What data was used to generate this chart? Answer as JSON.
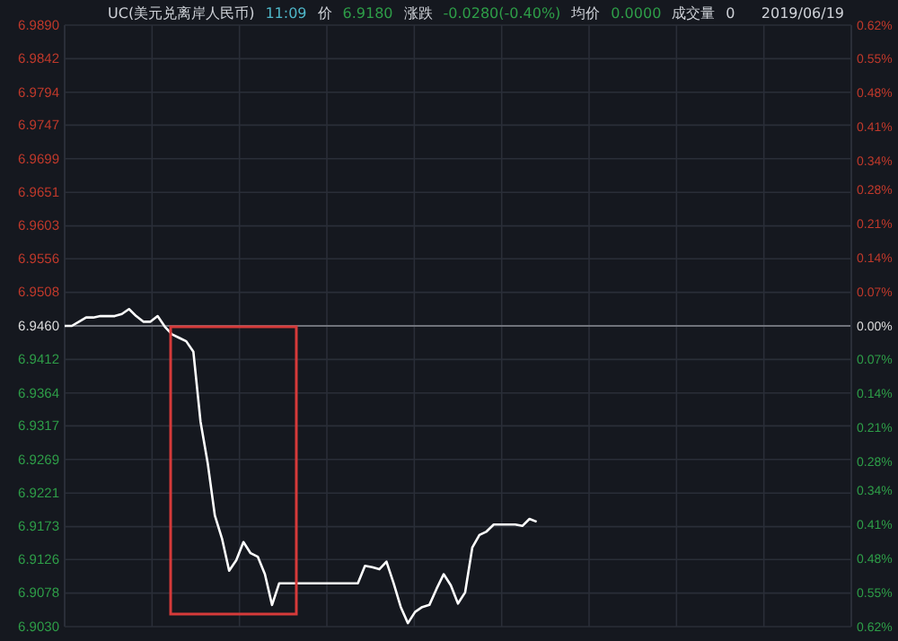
{
  "chart_data": {
    "type": "line",
    "title": "UC(美元兑离岸人民币)",
    "annotations": [
      "11:09",
      "价",
      "6.9180",
      "涨跌",
      "-0.0280(-0.40%)",
      "均价",
      "0.0000",
      "成交量",
      "0",
      "2019/06/19"
    ],
    "categories": [
      null,
      null,
      null,
      null,
      null,
      null,
      null,
      null,
      null,
      null,
      null,
      null,
      null,
      null,
      null,
      null,
      null,
      null,
      null,
      null,
      null,
      null,
      null,
      null,
      null,
      null,
      null,
      null,
      null,
      null,
      null,
      null,
      null,
      null,
      null,
      null,
      null,
      null,
      null,
      null,
      null,
      null,
      null,
      null,
      null,
      null,
      null,
      null,
      null,
      null,
      null,
      null,
      null,
      null,
      null,
      null,
      null,
      null,
      null,
      null,
      null,
      null,
      null,
      null,
      null,
      null,
      null,
      null,
      null,
      null,
      null,
      null,
      null,
      null,
      null,
      null,
      null,
      null,
      null,
      null,
      null,
      null,
      null,
      null,
      null,
      null,
      null,
      null,
      null,
      null,
      null,
      null,
      null,
      null,
      null,
      null,
      null,
      null,
      null,
      null,
      null,
      null,
      null,
      null,
      null,
      null,
      null,
      null,
      null,
      null,
      null
    ],
    "series": [
      {
        "color": "#ffffff",
        "values": [
          6.946,
          6.946,
          6.9466,
          6.9472,
          6.9472,
          6.9474,
          6.9474,
          6.9474,
          6.9477,
          6.9484,
          6.9474,
          6.9466,
          6.9466,
          6.9474,
          6.9459,
          6.9448,
          6.9443,
          6.9438,
          6.9423,
          6.9323,
          6.9264,
          6.9189,
          6.9156,
          6.911,
          6.9125,
          6.9151,
          6.9135,
          6.913,
          6.9105,
          6.9061,
          6.9092,
          6.9092,
          6.9092,
          6.9092,
          6.9092,
          6.9092,
          6.9092,
          6.9092,
          6.9092,
          6.9092,
          6.9092,
          6.9092,
          6.9117,
          6.9115,
          6.9112,
          6.9123,
          6.9092,
          6.9058,
          6.9035,
          6.9051,
          6.9058,
          6.9061,
          6.9084,
          6.9105,
          6.9089,
          6.9063,
          6.9079,
          6.9143,
          6.9161,
          6.9166,
          6.9176,
          6.9176,
          6.9176,
          6.9176,
          6.9174,
          6.9184,
          6.918,
          null,
          null,
          null,
          null,
          null,
          null,
          null,
          null,
          null,
          null,
          null,
          null,
          null,
          null,
          null,
          null,
          null,
          null,
          null,
          null,
          null,
          null,
          null,
          null,
          null,
          null,
          null,
          null,
          null,
          null,
          null,
          null,
          null,
          null,
          null,
          null,
          null,
          null,
          null,
          null,
          null,
          null,
          null,
          null
        ]
      }
    ],
    "ylim": [
      6.903,
      6.989
    ],
    "yticks": [
      {
        "value": 6.989,
        "label": "6.9890"
      },
      6.9842,
      6.9794,
      6.9747,
      6.9699,
      6.9651,
      6.9603,
      6.9556,
      6.9508,
      {
        "value": 6.946,
        "label": "6.9460"
      },
      6.9412,
      6.9364,
      6.9317,
      6.9269,
      6.9221,
      6.9173,
      6.9126,
      6.9078,
      {
        "value": 6.903,
        "label": "6.9030"
      }
    ],
    "y2lim": [
      -0.62,
      0.62
    ],
    "y2ticks": [
      {
        "value": 0.62,
        "label": "0.62%"
      },
      {
        "value": 0.55,
        "label": "0.55%"
      },
      {
        "value": 0.48,
        "label": "0.48%"
      },
      {
        "value": 0.41,
        "label": "0.41%"
      },
      {
        "value": 0.34,
        "label": "0.34%"
      },
      {
        "value": 0.28,
        "label": "0.28%"
      },
      {
        "value": 0.21,
        "label": "0.21%"
      },
      {
        "value": 0.14,
        "label": "0.14%"
      },
      {
        "value": 0.07,
        "label": "0.07%"
      },
      {
        "value": 0,
        "label": "0.00%"
      },
      {
        "value": -0.07,
        "label": "0.07%"
      },
      {
        "value": -0.14,
        "label": "0.14%"
      },
      {
        "value": -0.21,
        "label": "0.21%"
      },
      {
        "value": -0.28,
        "label": "0.28%"
      },
      {
        "value": -0.34,
        "label": "0.34%"
      },
      {
        "value": -0.41,
        "label": "0.41%"
      },
      {
        "value": -0.48,
        "label": "0.48%"
      },
      {
        "value": -0.55,
        "label": "0.55%"
      },
      {
        "value": -0.62,
        "label": "0.62%"
      }
    ],
    "ref_lines": [
      {
        "axis": "y",
        "value": 6.946,
        "color": "#8a8d94"
      }
    ],
    "grid": true
  }
}
